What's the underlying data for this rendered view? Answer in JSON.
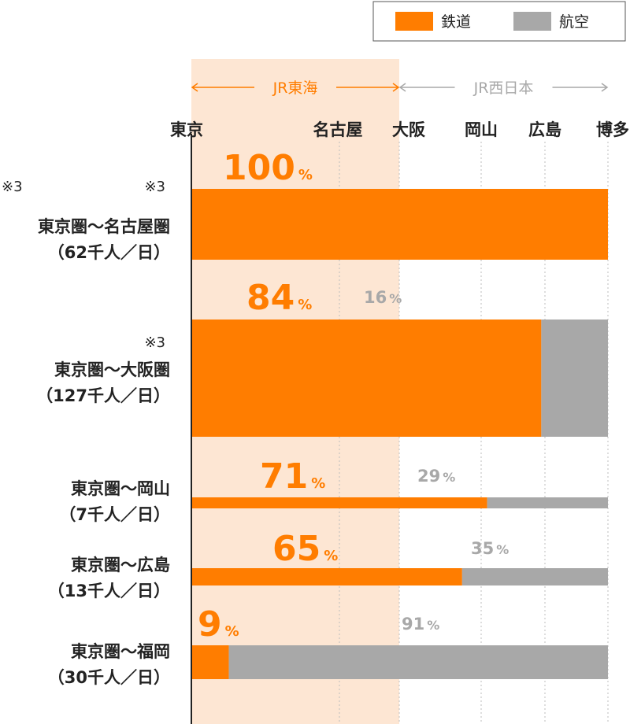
{
  "chart_data": {
    "type": "bar",
    "orientation": "horizontal",
    "stacked": true,
    "legend": {
      "position": "top-right",
      "entries": [
        {
          "label": "鉄道",
          "color": "#ff7d00"
        },
        {
          "label": "航空",
          "color": "#a8a8a8"
        }
      ]
    },
    "regions": [
      {
        "label": "JR東海",
        "color": "#ff7d00",
        "shade": "#fde6d3",
        "from": "東京",
        "to": "大阪"
      },
      {
        "label": "JR西日本",
        "color": "#a8a8a8",
        "from": "大阪",
        "to": "博多"
      }
    ],
    "cities": [
      "東京",
      "名古屋",
      "大阪",
      "岡山",
      "広島",
      "博多"
    ],
    "unit": "%",
    "categories": [
      {
        "route": "東京圏〜名古屋圏",
        "volume": "（62千人／日）",
        "notes": [
          "※3",
          "※3"
        ],
        "rail": 100,
        "air": null,
        "rail_label": "100",
        "air_label": ""
      },
      {
        "route": "東京圏〜大阪圏",
        "volume": "（127千人／日）",
        "notes": [
          "※3"
        ],
        "rail": 84,
        "air": 16,
        "rail_label": "84",
        "air_label": "16"
      },
      {
        "route": "東京圏〜岡山",
        "volume": "（7千人／日）",
        "notes": [],
        "rail": 71,
        "air": 29,
        "rail_label": "71",
        "air_label": "29"
      },
      {
        "route": "東京圏〜広島",
        "volume": "（13千人／日）",
        "notes": [],
        "rail": 65,
        "air": 35,
        "rail_label": "65",
        "air_label": "35"
      },
      {
        "route": "東京圏〜福岡",
        "volume": "（30千人／日）",
        "notes": [],
        "rail": 9,
        "air": 91,
        "rail_label": "9",
        "air_label": "91"
      }
    ]
  }
}
